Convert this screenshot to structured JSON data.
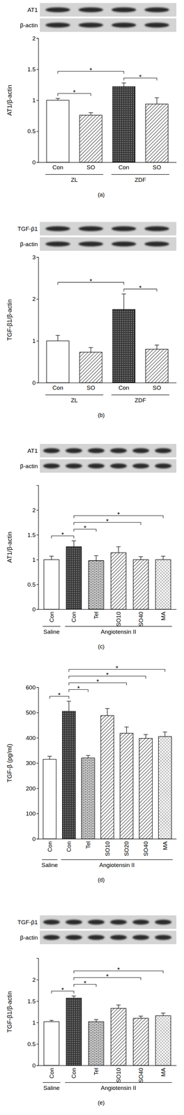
{
  "chart_data": [
    {
      "type": "bar",
      "panel_label": "(a)",
      "y_label": "AT1/β-actin",
      "blots": [
        {
          "label": "AT1"
        },
        {
          "label": "β-actin"
        }
      ],
      "categories": [
        "Con",
        "SO",
        "Con",
        "SO"
      ],
      "values": [
        1.0,
        0.76,
        1.22,
        0.94
      ],
      "errors": [
        0.03,
        0.04,
        0.06,
        0.1
      ],
      "groups": [
        {
          "label": "ZL",
          "from": 0,
          "to": 1
        },
        {
          "label": "ZDF",
          "from": 2,
          "to": 3
        }
      ],
      "annotations": [
        {
          "from": 0,
          "to": 1,
          "label": "*"
        },
        {
          "from": 0,
          "to": 2,
          "label": "*"
        },
        {
          "from": 2,
          "to": 3,
          "label": "*"
        }
      ],
      "ylim": [
        0,
        2
      ],
      "yticks": [
        0,
        0.5,
        1,
        1.5,
        2
      ]
    },
    {
      "type": "bar",
      "panel_label": "(b)",
      "y_label": "TGF-β1/β-actin",
      "blots": [
        {
          "label": "TGF-β1"
        },
        {
          "label": "β-actin"
        }
      ],
      "categories": [
        "Con",
        "SO",
        "Con",
        "SO"
      ],
      "values": [
        1.0,
        0.73,
        1.75,
        0.8
      ],
      "errors": [
        0.13,
        0.11,
        0.37,
        0.1
      ],
      "groups": [
        {
          "label": "ZL",
          "from": 0,
          "to": 1
        },
        {
          "label": "ZDF",
          "from": 2,
          "to": 3
        }
      ],
      "annotations": [
        {
          "from": 0,
          "to": 2,
          "label": "*"
        },
        {
          "from": 2,
          "to": 3,
          "label": "*"
        }
      ],
      "ylim": [
        0,
        3
      ],
      "yticks": [
        0,
        1,
        2,
        3
      ]
    },
    {
      "type": "bar",
      "panel_label": "(c)",
      "y_label": "AT1/β-actin",
      "blots": [
        {
          "label": "AT1"
        },
        {
          "label": "β-actin"
        }
      ],
      "categories": [
        "Con",
        "Con",
        "Tel",
        "SO10",
        "SO40",
        "MA"
      ],
      "values": [
        1.0,
        1.26,
        0.98,
        1.14,
        1.0,
        1.0
      ],
      "errors": [
        0.07,
        0.12,
        0.1,
        0.12,
        0.06,
        0.07
      ],
      "groups": [
        {
          "label": "Saline",
          "from": 0,
          "to": 0
        },
        {
          "label": "Angiotensin II",
          "from": 1,
          "to": 5
        }
      ],
      "annotations": [
        {
          "from": 0,
          "to": 1,
          "label": "*"
        },
        {
          "from": 1,
          "to": 2,
          "label": "*"
        },
        {
          "from": 1,
          "to": 4,
          "label": "*"
        },
        {
          "from": 1,
          "to": 5,
          "label": "*"
        }
      ],
      "ylim": [
        0,
        2.5
      ],
      "yticks": [
        0,
        0.5,
        1,
        1.5,
        2
      ]
    },
    {
      "type": "bar",
      "panel_label": "(d)",
      "y_label": "TGF-β (pg/ml)",
      "categories": [
        "Con",
        "Con",
        "Tel",
        "SO10",
        "SO20",
        "SO40",
        "MA"
      ],
      "values": [
        315,
        505,
        320,
        488,
        418,
        398,
        405
      ],
      "errors": [
        12,
        40,
        10,
        28,
        25,
        15,
        18
      ],
      "groups": [
        {
          "label": "Saline",
          "from": 0,
          "to": 0
        },
        {
          "label": "Angiotensin II",
          "from": 1,
          "to": 6
        }
      ],
      "annotations": [
        {
          "from": 0,
          "to": 1,
          "label": "*"
        },
        {
          "from": 1,
          "to": 2,
          "label": "*"
        },
        {
          "from": 1,
          "to": 4,
          "label": "*"
        },
        {
          "from": 1,
          "to": 5,
          "label": "*"
        },
        {
          "from": 1,
          "to": 6,
          "label": "*"
        }
      ],
      "ylim": [
        0,
        600
      ],
      "yticks": [
        0,
        100,
        200,
        300,
        400,
        500,
        600
      ]
    },
    {
      "type": "bar",
      "panel_label": "(e)",
      "y_label": "TGF-β1/β-actin",
      "blots": [
        {
          "label": "TGF-β1"
        },
        {
          "label": "β-actin"
        }
      ],
      "categories": [
        "Con",
        "Con",
        "Tel",
        "SO10",
        "SO40",
        "MA"
      ],
      "values": [
        1.02,
        1.57,
        1.02,
        1.33,
        1.1,
        1.16
      ],
      "errors": [
        0.03,
        0.05,
        0.05,
        0.08,
        0.05,
        0.06
      ],
      "groups": [
        {
          "label": "Saline",
          "from": 0,
          "to": 0
        },
        {
          "label": "Angiotensin II",
          "from": 1,
          "to": 5
        }
      ],
      "annotations": [
        {
          "from": 0,
          "to": 1,
          "label": "*"
        },
        {
          "from": 1,
          "to": 2,
          "label": "*"
        },
        {
          "from": 1,
          "to": 4,
          "label": "*"
        },
        {
          "from": 1,
          "to": 5,
          "label": "*"
        }
      ],
      "ylim": [
        0,
        2.5
      ],
      "yticks": [
        0,
        0.5,
        1,
        1.5,
        2
      ]
    }
  ]
}
